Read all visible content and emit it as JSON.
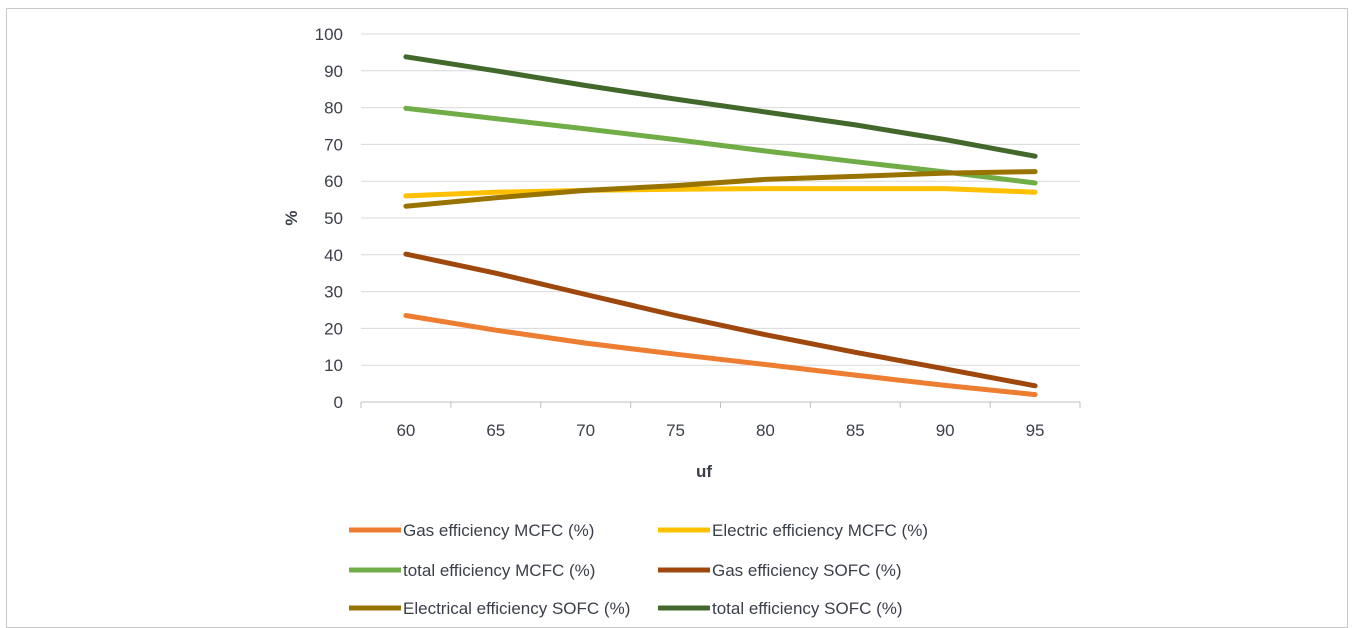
{
  "chart_data": {
    "type": "line",
    "title": "",
    "xlabel": "uf",
    "ylabel": "%",
    "x": [
      60,
      65,
      70,
      75,
      80,
      85,
      90,
      95
    ],
    "ylim": [
      0,
      100
    ],
    "yticks": [
      0,
      10,
      20,
      30,
      40,
      50,
      60,
      70,
      80,
      90,
      100
    ],
    "grid": "horizontal",
    "legend_position": "bottom",
    "series": [
      {
        "name": "Gas efficiency MCFC (%)",
        "color": "#ed7d31",
        "values": [
          23.5,
          19.5,
          16,
          13,
          10.2,
          7.3,
          4.5,
          2.0
        ]
      },
      {
        "name": "Electric efficiency MCFC  (%)",
        "color": "#ffc000",
        "values": [
          56.0,
          57.0,
          57.5,
          57.8,
          58.0,
          58.0,
          58.0,
          57.0
        ]
      },
      {
        "name": "total efficiency MCFC  (%)",
        "color": "#70ad47",
        "values": [
          79.8,
          77,
          74.2,
          71.3,
          68.2,
          65.3,
          62.5,
          59.5
        ]
      },
      {
        "name": "Gas efficiency SOFC (%)",
        "color": "#9e480e",
        "values": [
          40.2,
          35,
          29.2,
          23.5,
          18.3,
          13.5,
          9.0,
          4.4
        ]
      },
      {
        "name": "Electrical efficiency  SOFC (%)",
        "color": "#997300",
        "values": [
          53.2,
          55.5,
          57.5,
          58.8,
          60.5,
          61.3,
          62.2,
          62.6
        ]
      },
      {
        "name": "total efficiency SOFC  (%)",
        "color": "#43682b",
        "values": [
          93.8,
          90,
          86,
          82.3,
          78.8,
          75.3,
          71.3,
          66.8
        ]
      }
    ]
  }
}
